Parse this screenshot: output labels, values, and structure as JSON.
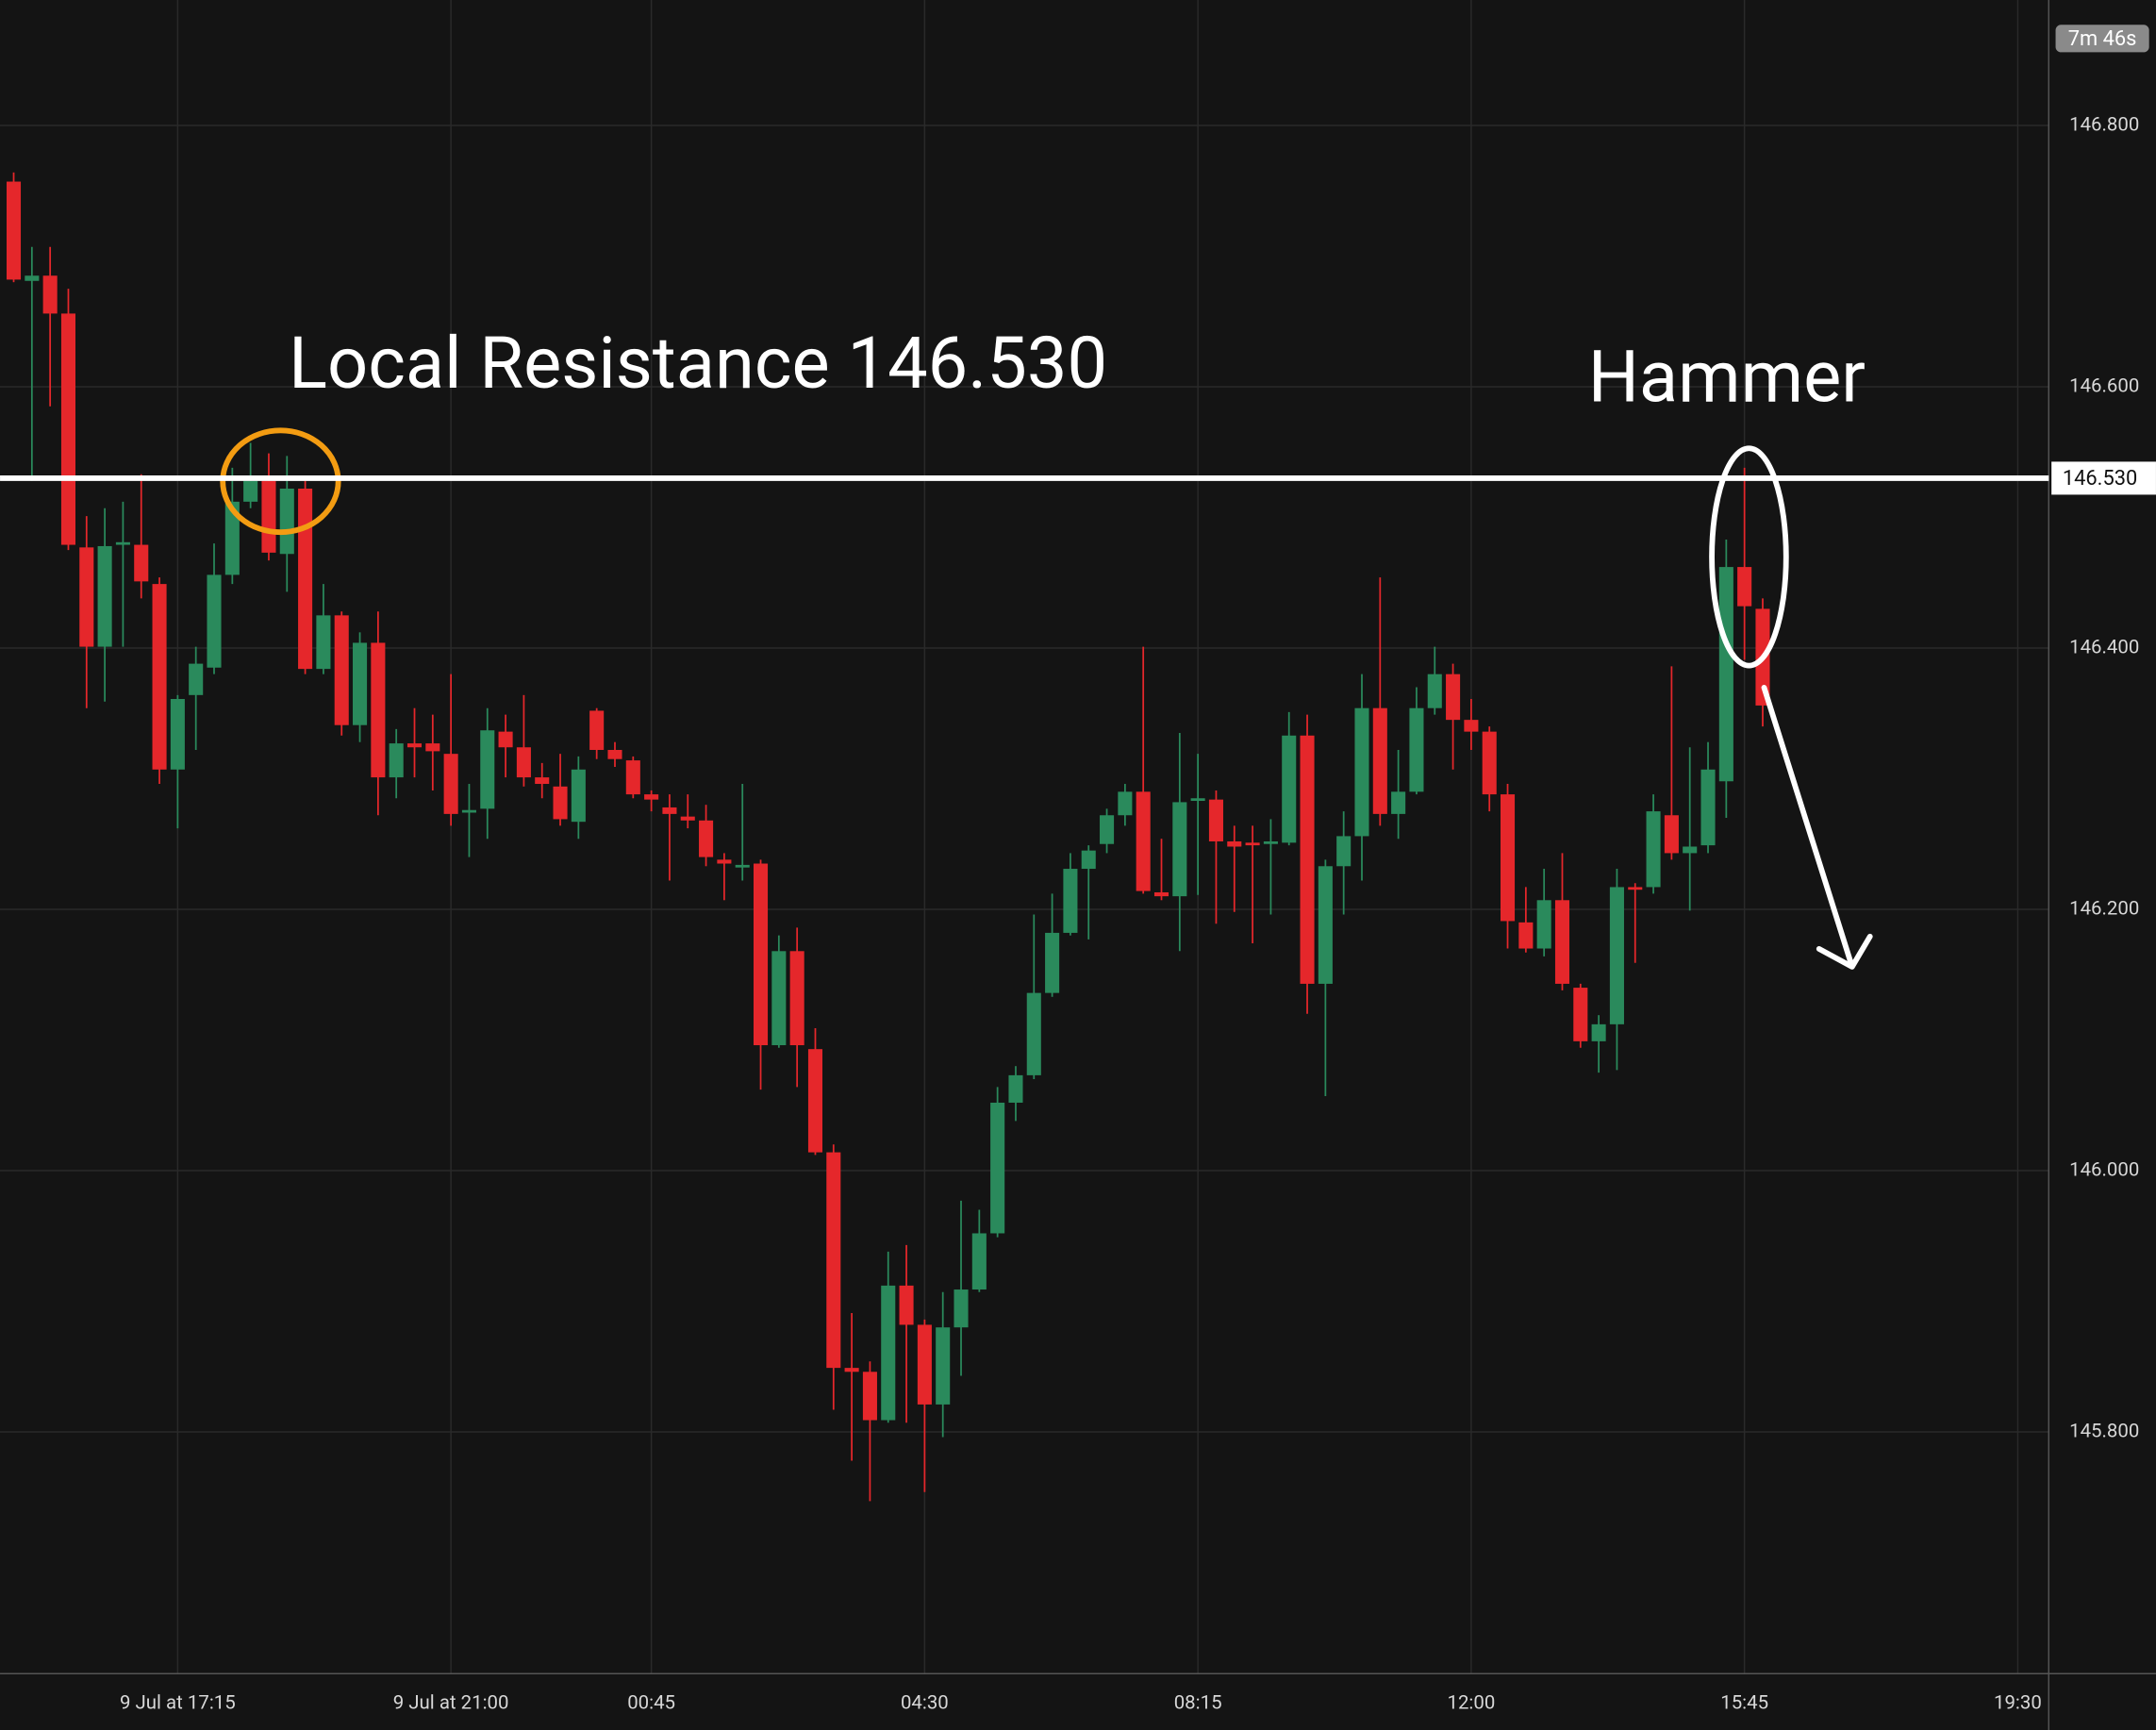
{
  "chart_data": {
    "type": "candlestick",
    "up_color": "#2a8a5c",
    "down_color": "#e5272b",
    "annotations": [
      "Local Resistance 146.530",
      "Hammer"
    ],
    "timer": "7m 46s",
    "resistance": {
      "value": 146.53,
      "label": "146.530"
    },
    "ylim": [
      145.615,
      146.896
    ],
    "yticks": [
      {
        "value": 145.8,
        "label": "145.800"
      },
      {
        "value": 146.0,
        "label": "146.000"
      },
      {
        "value": 146.2,
        "label": "146.200"
      },
      {
        "value": 146.4,
        "label": "146.400"
      },
      {
        "value": 146.6,
        "label": "146.600"
      },
      {
        "value": 146.8,
        "label": "146.800"
      }
    ],
    "xlim": [
      -0.75,
      111.7
    ],
    "xticks": [
      {
        "value": 9,
        "label": "9 Jul at 17:15"
      },
      {
        "value": 24,
        "label": "9 Jul at 21:00"
      },
      {
        "value": 35,
        "label": "00:45"
      },
      {
        "value": 50,
        "label": "04:30"
      },
      {
        "value": 65,
        "label": "08:15"
      },
      {
        "value": 80,
        "label": "12:00"
      },
      {
        "value": 95,
        "label": "15:45"
      },
      {
        "value": 110,
        "label": "19:30"
      }
    ],
    "grid": true,
    "open": [
      146.757,
      146.681,
      146.685,
      146.656,
      146.477,
      146.401,
      146.479,
      146.479,
      146.449,
      146.307,
      146.364,
      146.385,
      146.456,
      146.512,
      146.528,
      146.472,
      146.522,
      146.384,
      146.425,
      146.341,
      146.404,
      146.301,
      146.327,
      146.327,
      146.319,
      146.274,
      146.277,
      146.336,
      146.324,
      146.301,
      146.294,
      146.267,
      146.352,
      146.322,
      146.314,
      146.288,
      146.278,
      146.271,
      146.268,
      146.238,
      146.232,
      146.235,
      146.096,
      146.168,
      146.093,
      146.014,
      145.849,
      145.846,
      145.809,
      145.912,
      145.882,
      145.821,
      145.88,
      145.909,
      145.952,
      146.052,
      146.073,
      146.136,
      146.182,
      146.231,
      146.25,
      146.272,
      146.29,
      146.213,
      146.21,
      146.283,
      146.284,
      146.252,
      146.251,
      146.25,
      146.251,
      146.333,
      146.143,
      146.233,
      146.256,
      146.354,
      146.273,
      146.29,
      146.354,
      146.38,
      146.345,
      146.336,
      146.288,
      146.19,
      146.17,
      146.207,
      146.14,
      146.099,
      146.112,
      146.217,
      146.217,
      146.272,
      146.243,
      146.249,
      146.298,
      146.462,
      146.43
    ],
    "high": [
      146.764,
      146.707,
      146.707,
      146.675,
      146.501,
      146.507,
      146.512,
      146.533,
      146.454,
      146.364,
      146.401,
      146.48,
      146.538,
      146.557,
      146.549,
      146.547,
      146.528,
      146.449,
      146.428,
      146.412,
      146.428,
      146.338,
      146.354,
      146.349,
      146.38,
      146.296,
      146.354,
      146.349,
      146.364,
      146.312,
      146.319,
      146.317,
      146.354,
      146.328,
      146.317,
      146.291,
      146.288,
      146.288,
      146.28,
      146.243,
      146.296,
      146.238,
      146.18,
      146.186,
      146.109,
      146.02,
      145.891,
      145.854,
      145.938,
      145.943,
      145.886,
      145.907,
      145.977,
      145.97,
      146.064,
      146.08,
      146.196,
      146.212,
      146.243,
      146.249,
      146.277,
      146.296,
      146.401,
      146.254,
      146.335,
      146.319,
      146.291,
      146.264,
      146.264,
      146.269,
      146.351,
      146.349,
      146.238,
      146.275,
      146.38,
      146.454,
      146.322,
      146.37,
      146.401,
      146.388,
      146.361,
      146.34,
      146.296,
      146.217,
      146.231,
      146.243,
      146.143,
      146.119,
      146.231,
      146.22,
      146.288,
      146.386,
      146.324,
      146.328,
      146.483,
      146.538,
      146.438
    ],
    "low": [
      146.68,
      146.528,
      146.585,
      146.475,
      146.354,
      146.359,
      146.401,
      146.438,
      146.296,
      146.262,
      146.322,
      146.38,
      146.449,
      146.507,
      146.467,
      146.443,
      146.38,
      146.38,
      146.333,
      146.328,
      146.272,
      146.285,
      146.301,
      146.291,
      146.264,
      146.24,
      146.254,
      146.301,
      146.294,
      146.285,
      146.264,
      146.254,
      146.315,
      146.309,
      146.285,
      146.275,
      146.222,
      146.262,
      146.233,
      146.207,
      146.222,
      146.062,
      146.094,
      146.064,
      146.012,
      145.817,
      145.778,
      145.747,
      145.807,
      145.807,
      145.754,
      145.796,
      145.843,
      145.907,
      145.949,
      146.038,
      146.07,
      146.133,
      146.18,
      146.177,
      146.243,
      146.264,
      146.212,
      146.207,
      146.168,
      146.211,
      146.189,
      146.198,
      146.174,
      146.196,
      146.249,
      146.12,
      146.057,
      146.196,
      146.222,
      146.264,
      146.254,
      146.288,
      146.349,
      146.307,
      146.322,
      146.275,
      146.17,
      146.167,
      146.164,
      146.138,
      146.094,
      146.075,
      146.077,
      146.159,
      146.212,
      146.238,
      146.199,
      146.243,
      146.27,
      146.391,
      146.34
    ],
    "close": [
      146.682,
      146.685,
      146.656,
      146.479,
      146.401,
      146.478,
      146.481,
      146.451,
      146.307,
      146.361,
      146.388,
      146.456,
      146.512,
      146.528,
      146.473,
      146.522,
      146.384,
      146.425,
      146.341,
      146.404,
      146.301,
      146.327,
      146.324,
      146.321,
      146.273,
      146.276,
      146.337,
      146.324,
      146.301,
      146.296,
      146.269,
      146.307,
      146.322,
      146.315,
      146.288,
      146.284,
      146.273,
      146.268,
      146.24,
      146.235,
      146.234,
      146.096,
      146.168,
      146.096,
      146.014,
      145.849,
      145.846,
      145.809,
      145.912,
      145.882,
      145.821,
      145.88,
      145.909,
      145.952,
      146.052,
      146.073,
      146.136,
      146.182,
      146.231,
      146.245,
      146.272,
      146.29,
      146.214,
      146.21,
      146.282,
      146.285,
      146.252,
      146.248,
      146.249,
      146.252,
      146.333,
      146.143,
      146.233,
      146.256,
      146.354,
      146.273,
      146.29,
      146.354,
      146.38,
      146.345,
      146.336,
      146.288,
      146.191,
      146.17,
      146.207,
      146.143,
      146.099,
      146.112,
      146.217,
      146.215,
      146.275,
      146.243,
      146.248,
      146.307,
      146.462,
      146.432,
      146.356
    ]
  }
}
